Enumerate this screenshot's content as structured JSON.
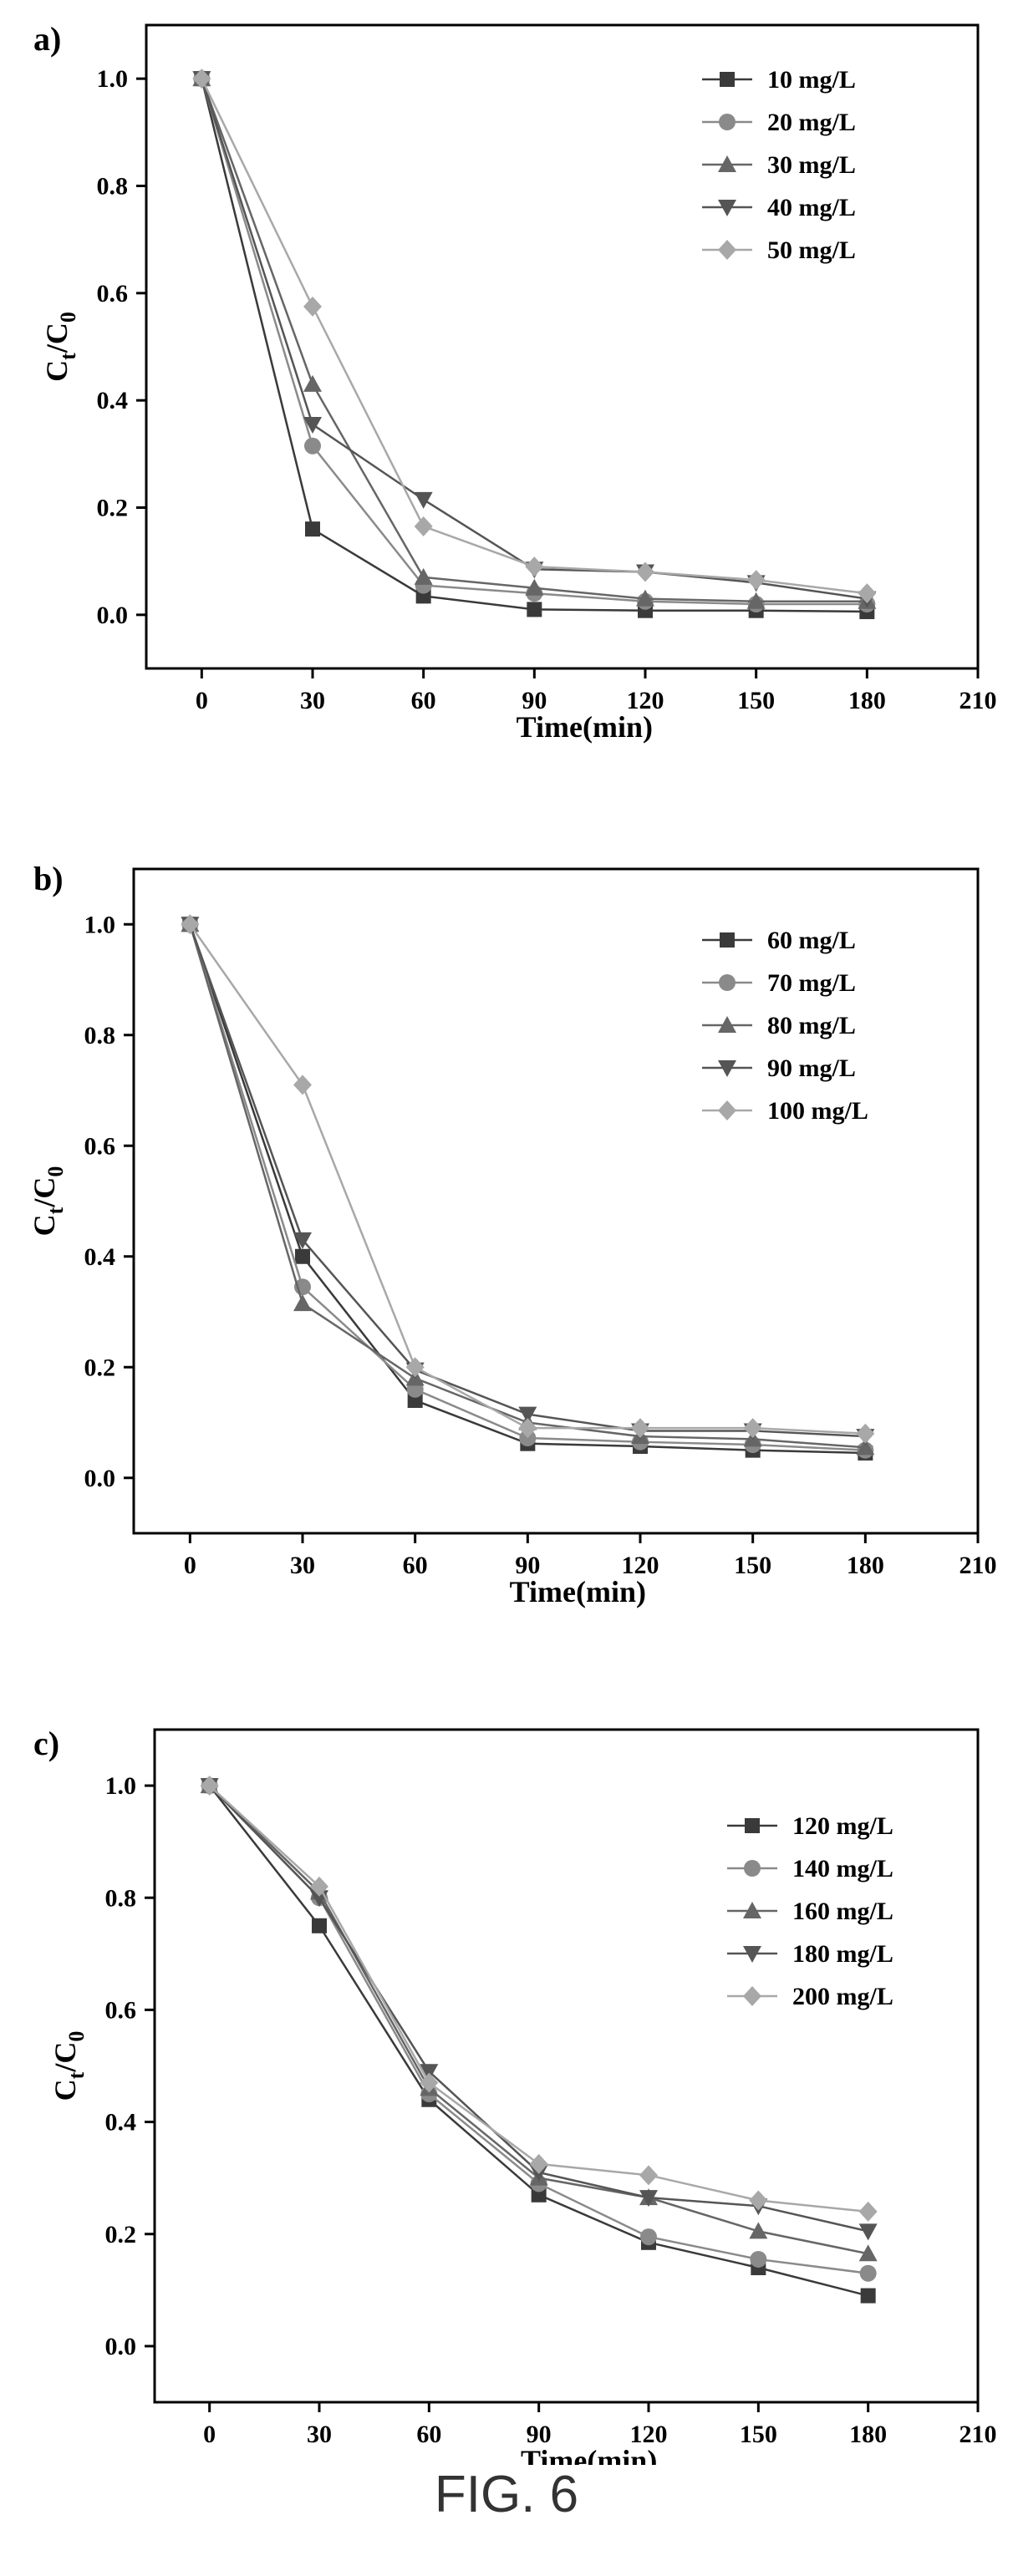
{
  "figure_caption": "FIG. 6",
  "chart_data": [
    {
      "type": "line",
      "panel_label": "a)",
      "xlabel": "Time(min)",
      "ylabel_main": "C",
      "ylabel_sub1": "t",
      "ylabel_mid": "/C",
      "ylabel_sub2": "0",
      "xlim": [
        -15,
        210
      ],
      "ylim": [
        -0.1,
        1.1
      ],
      "xticks": [
        0,
        30,
        60,
        90,
        120,
        150,
        180,
        210
      ],
      "yticks": [
        0.0,
        0.2,
        0.4,
        0.6,
        0.8,
        1.0
      ],
      "legend_position": "top-right",
      "x": [
        0,
        30,
        60,
        90,
        120,
        150,
        180
      ],
      "series": [
        {
          "name": "10 mg/L",
          "marker": "square",
          "color": "#3a3a3a",
          "values": [
            1.0,
            0.16,
            0.035,
            0.01,
            0.008,
            0.008,
            0.006
          ]
        },
        {
          "name": "20 mg/L",
          "marker": "circle",
          "color": "#8a8a8a",
          "values": [
            1.0,
            0.315,
            0.055,
            0.04,
            0.025,
            0.02,
            0.02
          ]
        },
        {
          "name": "30 mg/L",
          "marker": "triangle-up",
          "color": "#666666",
          "values": [
            1.0,
            0.43,
            0.07,
            0.05,
            0.03,
            0.025,
            0.025
          ]
        },
        {
          "name": "40 mg/L",
          "marker": "triangle-down",
          "color": "#555555",
          "values": [
            1.0,
            0.355,
            0.215,
            0.085,
            0.08,
            0.06,
            0.03
          ]
        },
        {
          "name": "50 mg/L",
          "marker": "diamond",
          "color": "#a8a8a8",
          "values": [
            1.0,
            0.575,
            0.165,
            0.09,
            0.08,
            0.065,
            0.04
          ]
        }
      ]
    },
    {
      "type": "line",
      "panel_label": "b)",
      "xlabel": "Time(min)",
      "ylabel_main": "C",
      "ylabel_sub1": "t",
      "ylabel_mid": "/C",
      "ylabel_sub2": "0",
      "xlim": [
        -15,
        210
      ],
      "ylim": [
        -0.1,
        1.1
      ],
      "xticks": [
        0,
        30,
        60,
        90,
        120,
        150,
        180,
        210
      ],
      "yticks": [
        0.0,
        0.2,
        0.4,
        0.6,
        0.8,
        1.0
      ],
      "legend_position": "top-right",
      "x": [
        0,
        30,
        60,
        90,
        120,
        150,
        180
      ],
      "series": [
        {
          "name": "60 mg/L",
          "marker": "square",
          "color": "#3a3a3a",
          "values": [
            1.0,
            0.4,
            0.14,
            0.062,
            0.057,
            0.05,
            0.045
          ]
        },
        {
          "name": "70 mg/L",
          "marker": "circle",
          "color": "#8a8a8a",
          "values": [
            1.0,
            0.345,
            0.16,
            0.072,
            0.065,
            0.06,
            0.05
          ]
        },
        {
          "name": "80 mg/L",
          "marker": "triangle-up",
          "color": "#666666",
          "values": [
            1.0,
            0.315,
            0.18,
            0.1,
            0.075,
            0.07,
            0.055
          ]
        },
        {
          "name": "90 mg/L",
          "marker": "triangle-down",
          "color": "#555555",
          "values": [
            1.0,
            0.43,
            0.195,
            0.115,
            0.085,
            0.085,
            0.075
          ]
        },
        {
          "name": "100 mg/L",
          "marker": "diamond",
          "color": "#a8a8a8",
          "values": [
            1.0,
            0.71,
            0.2,
            0.09,
            0.09,
            0.09,
            0.08
          ]
        }
      ]
    },
    {
      "type": "line",
      "panel_label": "c)",
      "xlabel": "Time(min)",
      "ylabel_main": "C",
      "ylabel_sub1": "t",
      "ylabel_mid": "/C",
      "ylabel_sub2": "0",
      "xlim": [
        -15,
        210
      ],
      "ylim": [
        -0.1,
        1.1
      ],
      "xticks": [
        0,
        30,
        60,
        90,
        120,
        150,
        180,
        210
      ],
      "yticks": [
        0.0,
        0.2,
        0.4,
        0.6,
        0.8,
        1.0
      ],
      "legend_position": "right",
      "x": [
        0,
        30,
        60,
        90,
        120,
        150,
        180
      ],
      "series": [
        {
          "name": "120 mg/L",
          "marker": "square",
          "color": "#3a3a3a",
          "values": [
            1.0,
            0.75,
            0.44,
            0.27,
            0.185,
            0.14,
            0.09
          ]
        },
        {
          "name": "140 mg/L",
          "marker": "circle",
          "color": "#8a8a8a",
          "values": [
            1.0,
            0.8,
            0.45,
            0.29,
            0.195,
            0.155,
            0.13
          ]
        },
        {
          "name": "160 mg/L",
          "marker": "triangle-up",
          "color": "#666666",
          "values": [
            1.0,
            0.81,
            0.46,
            0.3,
            0.265,
            0.205,
            0.165
          ]
        },
        {
          "name": "180 mg/L",
          "marker": "triangle-down",
          "color": "#555555",
          "values": [
            1.0,
            0.8,
            0.49,
            0.31,
            0.265,
            0.25,
            0.205
          ]
        },
        {
          "name": "200 mg/L",
          "marker": "diamond",
          "color": "#a8a8a8",
          "values": [
            1.0,
            0.82,
            0.47,
            0.325,
            0.305,
            0.26,
            0.24
          ]
        }
      ]
    }
  ]
}
